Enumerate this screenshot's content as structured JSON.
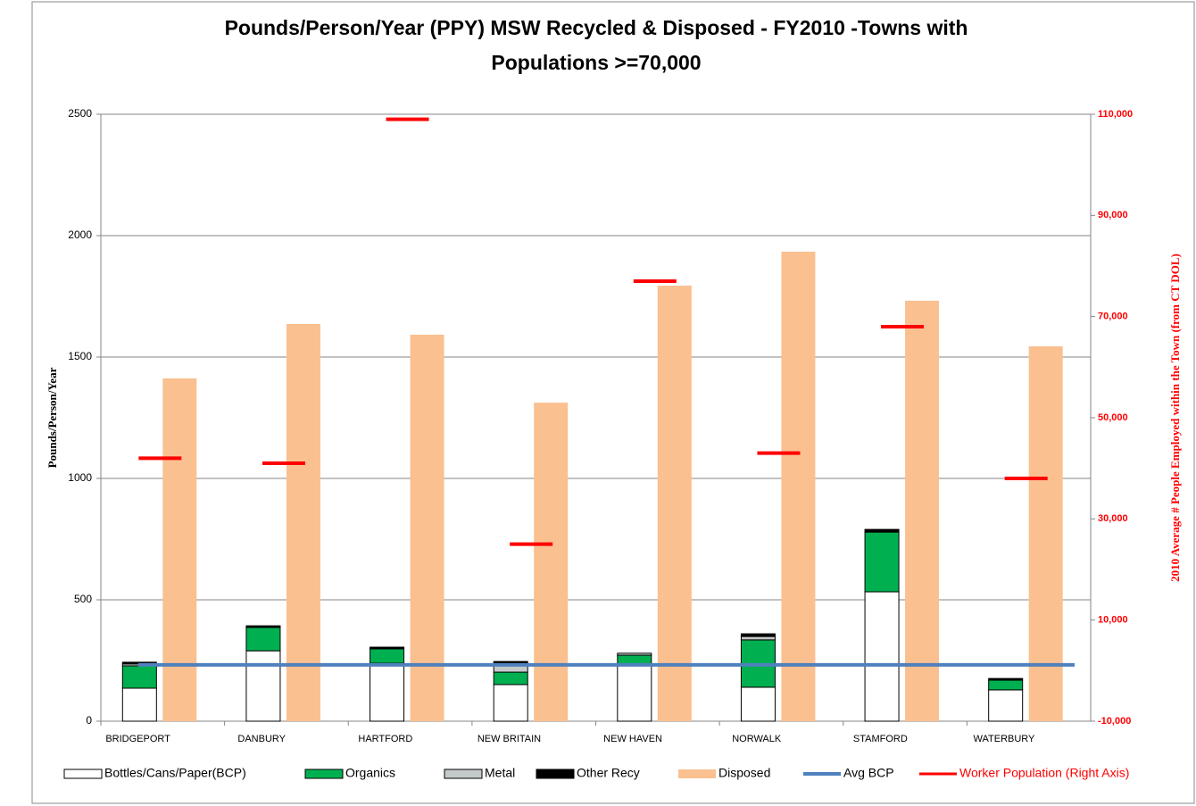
{
  "chart_data": {
    "type": "bar",
    "title": "Pounds/Person/Year (PPY) MSW Recycled & Disposed  - FY2010  -Towns with",
    "subtitle": "Populations >=70,000",
    "y_label": "Pounds/Person/Year",
    "y2_label": "2010 Average # People  Employed  within the Town (from CT DOL)",
    "categories": [
      "BRIDGEPORT",
      "DANBURY",
      "HARTFORD",
      "NEW BRITAIN",
      "NEW HAVEN",
      "NORWALK",
      "STAMFORD",
      "WATERBURY"
    ],
    "ylim": [
      0,
      2500
    ],
    "yticks": [
      0,
      500,
      1000,
      1500,
      2000,
      2500
    ],
    "y2lim": [
      -10000,
      110000
    ],
    "y2ticks": [
      {
        "value": -10000,
        "label": "-10,000"
      },
      {
        "value": 10000,
        "label": "10,000"
      },
      {
        "value": 30000,
        "label": "30,000"
      },
      {
        "value": 50000,
        "label": "50,000"
      },
      {
        "value": 70000,
        "label": "70,000"
      },
      {
        "value": 90000,
        "label": "90,000"
      },
      {
        "value": 110000,
        "label": "110,000"
      }
    ],
    "grid": true,
    "series": [
      {
        "name": "Bottles/Cans/Paper(BCP)",
        "type": "stacked_bar",
        "color": "#ffffff",
        "values": [
          136,
          290,
          239,
          151,
          232,
          140,
          533,
          129
        ]
      },
      {
        "name": "Organics",
        "type": "stacked_bar",
        "color": "#00b050",
        "values": [
          92,
          96,
          59,
          51,
          40,
          195,
          246,
          40
        ]
      },
      {
        "name": "Metal",
        "type": "stacked_bar",
        "color": "#c4c9c9",
        "values": [
          8,
          0,
          0,
          37,
          8,
          14,
          0,
          0
        ]
      },
      {
        "name": "Other Recy",
        "type": "stacked_bar",
        "color": "#000000",
        "values": [
          7,
          7,
          7,
          7,
          0,
          11,
          11,
          7
        ]
      },
      {
        "name": "Disposed",
        "type": "bar",
        "color": "#fac090",
        "values": [
          1412,
          1636,
          1592,
          1312,
          1794,
          1934,
          1732,
          1544
        ]
      },
      {
        "name": "Avg BCP",
        "type": "line",
        "color": "#4f81bd",
        "values": [
          232,
          232,
          232,
          232,
          232,
          232,
          232,
          232
        ]
      },
      {
        "name": "Worker Population (Right Axis)",
        "type": "dash",
        "axis": "y2",
        "color": "#ff0000",
        "values": [
          42000,
          41000,
          109000,
          25000,
          77000,
          43000,
          68000,
          38000
        ]
      }
    ]
  }
}
